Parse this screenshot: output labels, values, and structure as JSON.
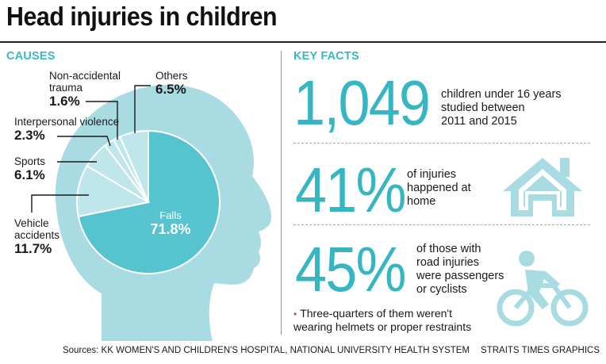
{
  "title": "Head injuries in children",
  "causes_heading": "CAUSES",
  "key_facts_heading": "KEY FACTS",
  "colors": {
    "accent": "#35b6c2",
    "head_silhouette": "#a9dce2",
    "falls_slice": "#56c4cf",
    "other_slices": "#bfe6ea",
    "bullet": "#e03a3a"
  },
  "chart_data": {
    "type": "pie",
    "title": "",
    "slices": [
      {
        "label": "Falls",
        "value": 71.8,
        "value_label": "71.8%"
      },
      {
        "label": "Vehicle accidents",
        "value": 11.7,
        "value_label": "11.7%"
      },
      {
        "label": "Sports",
        "value": 6.1,
        "value_label": "6.1%"
      },
      {
        "label": "Interpersonal violence",
        "value": 2.3,
        "value_label": "2.3%"
      },
      {
        "label": "Non-accidental trauma",
        "value": 1.6,
        "value_label": "1.6%"
      },
      {
        "label": "Others",
        "value": 6.5,
        "value_label": "6.5%"
      }
    ]
  },
  "labels": {
    "non_accidental_line1": "Non-accidental",
    "non_accidental_line2": "trauma",
    "vehicle_line1": "Vehicle",
    "vehicle_line2": "accidents"
  },
  "facts": [
    {
      "number": "1,049",
      "text_lines": [
        "children under 16 years",
        "studied between",
        "2011 and 2015"
      ],
      "icon": ""
    },
    {
      "number": "41%",
      "text_lines": [
        "of injuries",
        "happened at",
        "home"
      ],
      "icon": "house-icon"
    },
    {
      "number": "45%",
      "text_lines": [
        "of those with",
        "road injuries",
        "were passengers",
        "or cyclists"
      ],
      "icon": "cyclist-icon"
    }
  ],
  "note": {
    "bullet": "•",
    "line1": "Three-quarters of them weren't",
    "line2": "wearing helmets or proper restraints"
  },
  "footer": {
    "sources": "Sources: KK WOMEN'S AND CHILDREN'S HOSPITAL, NATIONAL UNIVERSITY HEALTH SYSTEM",
    "credit": "STRAITS TIMES GRAPHICS"
  }
}
